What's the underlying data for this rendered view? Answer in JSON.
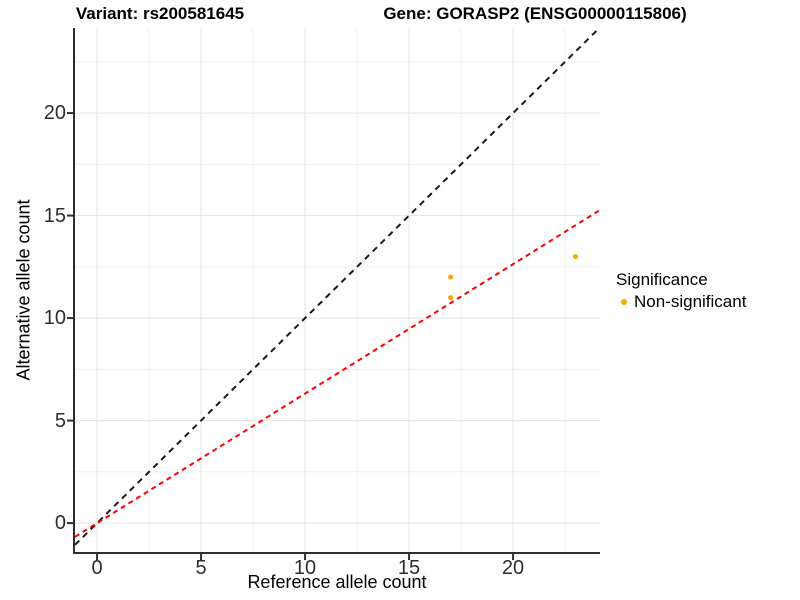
{
  "titles": {
    "variant": "Variant: rs200581645",
    "gene": "Gene: GORASP2 (ENSG00000115806)"
  },
  "chart_data": {
    "type": "scatter",
    "xlabel": "Reference allele count",
    "ylabel": "Alternative allele count",
    "xlim": [
      -1.06,
      24.18
    ],
    "ylim": [
      -1.41,
      24.15
    ],
    "x_ticks": [
      0,
      5,
      10,
      15,
      20
    ],
    "y_ticks": [
      0,
      5,
      10,
      15,
      20
    ],
    "x_minor_ticks": [
      2.5,
      7.5,
      12.5,
      17.5,
      22.5
    ],
    "y_minor_ticks": [
      2.5,
      7.5,
      12.5,
      17.5,
      22.5
    ],
    "points": [
      {
        "x": 17,
        "y": 12
      },
      {
        "x": 17,
        "y": 11
      },
      {
        "x": 23,
        "y": 13
      }
    ],
    "point_color": "#FFA500",
    "point_radius": 2.5,
    "lines": [
      {
        "name": "identity-line",
        "color": "#1a1a1a",
        "width": 2,
        "dash": "6 5",
        "x1": -1.06,
        "y1": -1.06,
        "x2": 24.15,
        "y2": 24.15
      },
      {
        "name": "fitted-ratio-line",
        "color": "#ff0000",
        "width": 2,
        "dash": "5 4",
        "x1": -1.06,
        "y1": -0.67,
        "x2": 24.18,
        "y2": 15.27
      }
    ],
    "grid": {
      "major": "#e3e3e3",
      "minor": "#f0f0f0"
    },
    "axis_color": "#2f2f2f",
    "legend": {
      "title": "Significance",
      "items": [
        {
          "label": "Non-significant",
          "color": "#FFA500"
        }
      ]
    }
  }
}
